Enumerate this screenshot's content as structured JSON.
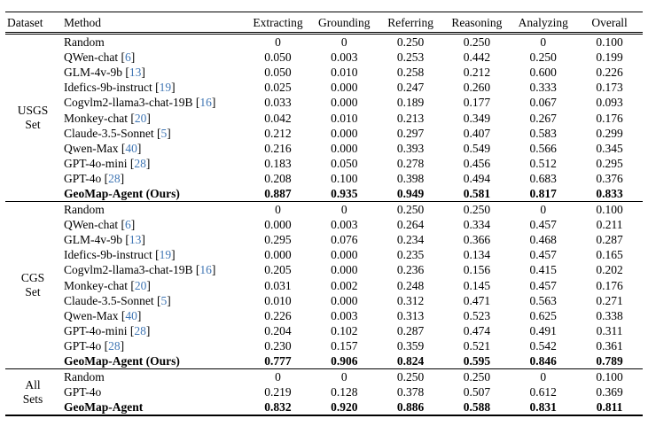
{
  "table": {
    "columns": [
      "Dataset",
      "Method",
      "Extracting",
      "Grounding",
      "Referring",
      "Reasoning",
      "Analyzing",
      "Overall"
    ],
    "cite_color": "#4076b4",
    "groups": [
      {
        "dataset_label_lines": [
          "USGS",
          "Set"
        ],
        "rows": [
          {
            "method": "Random",
            "cite": null,
            "bold": false,
            "values": [
              "0",
              "0",
              "0.250",
              "0.250",
              "0",
              "0.100"
            ]
          },
          {
            "method": "QWen-chat",
            "cite": "6",
            "bold": false,
            "values": [
              "0.050",
              "0.003",
              "0.253",
              "0.442",
              "0.250",
              "0.199"
            ]
          },
          {
            "method": "GLM-4v-9b",
            "cite": "13",
            "bold": false,
            "values": [
              "0.050",
              "0.010",
              "0.258",
              "0.212",
              "0.600",
              "0.226"
            ]
          },
          {
            "method": "Idefics-9b-instruct",
            "cite": "19",
            "bold": false,
            "values": [
              "0.025",
              "0.000",
              "0.247",
              "0.260",
              "0.333",
              "0.173"
            ]
          },
          {
            "method": "Cogvlm2-llama3-chat-19B",
            "cite": "16",
            "bold": false,
            "values": [
              "0.033",
              "0.000",
              "0.189",
              "0.177",
              "0.067",
              "0.093"
            ]
          },
          {
            "method": "Monkey-chat",
            "cite": "20",
            "bold": false,
            "values": [
              "0.042",
              "0.010",
              "0.213",
              "0.349",
              "0.267",
              "0.176"
            ]
          },
          {
            "method": "Claude-3.5-Sonnet",
            "cite": "5",
            "bold": false,
            "values": [
              "0.212",
              "0.000",
              "0.297",
              "0.407",
              "0.583",
              "0.299"
            ]
          },
          {
            "method": "Qwen-Max",
            "cite": "40",
            "bold": false,
            "values": [
              "0.216",
              "0.000",
              "0.393",
              "0.549",
              "0.566",
              "0.345"
            ]
          },
          {
            "method": "GPT-4o-mini",
            "cite": "28",
            "bold": false,
            "values": [
              "0.183",
              "0.050",
              "0.278",
              "0.456",
              "0.512",
              "0.295"
            ]
          },
          {
            "method": "GPT-4o",
            "cite": "28",
            "bold": false,
            "values": [
              "0.208",
              "0.100",
              "0.398",
              "0.494",
              "0.683",
              "0.376"
            ]
          },
          {
            "method": "GeoMap-Agent (Ours)",
            "cite": null,
            "bold": true,
            "values": [
              "0.887",
              "0.935",
              "0.949",
              "0.581",
              "0.817",
              "0.833"
            ]
          }
        ]
      },
      {
        "dataset_label_lines": [
          "CGS",
          "Set"
        ],
        "rows": [
          {
            "method": "Random",
            "cite": null,
            "bold": false,
            "values": [
              "0",
              "0",
              "0.250",
              "0.250",
              "0",
              "0.100"
            ]
          },
          {
            "method": "QWen-chat",
            "cite": "6",
            "bold": false,
            "values": [
              "0.000",
              "0.003",
              "0.264",
              "0.334",
              "0.457",
              "0.211"
            ]
          },
          {
            "method": "GLM-4v-9b",
            "cite": "13",
            "bold": false,
            "values": [
              "0.295",
              "0.076",
              "0.234",
              "0.366",
              "0.468",
              "0.287"
            ]
          },
          {
            "method": "Idefics-9b-instruct",
            "cite": "19",
            "bold": false,
            "values": [
              "0.000",
              "0.000",
              "0.235",
              "0.134",
              "0.457",
              "0.165"
            ]
          },
          {
            "method": "Cogvlm2-llama3-chat-19B",
            "cite": "16",
            "bold": false,
            "values": [
              "0.205",
              "0.000",
              "0.236",
              "0.156",
              "0.415",
              "0.202"
            ]
          },
          {
            "method": "Monkey-chat",
            "cite": "20",
            "bold": false,
            "values": [
              "0.031",
              "0.002",
              "0.248",
              "0.145",
              "0.457",
              "0.176"
            ]
          },
          {
            "method": "Claude-3.5-Sonnet",
            "cite": "5",
            "bold": false,
            "values": [
              "0.010",
              "0.000",
              "0.312",
              "0.471",
              "0.563",
              "0.271"
            ]
          },
          {
            "method": "Qwen-Max",
            "cite": "40",
            "bold": false,
            "values": [
              "0.226",
              "0.003",
              "0.313",
              "0.523",
              "0.625",
              "0.338"
            ]
          },
          {
            "method": "GPT-4o-mini",
            "cite": "28",
            "bold": false,
            "values": [
              "0.204",
              "0.102",
              "0.287",
              "0.474",
              "0.491",
              "0.311"
            ]
          },
          {
            "method": "GPT-4o",
            "cite": "28",
            "bold": false,
            "values": [
              "0.230",
              "0.157",
              "0.359",
              "0.521",
              "0.542",
              "0.361"
            ]
          },
          {
            "method": "GeoMap-Agent (Ours)",
            "cite": null,
            "bold": true,
            "values": [
              "0.777",
              "0.906",
              "0.824",
              "0.595",
              "0.846",
              "0.789"
            ]
          }
        ]
      },
      {
        "dataset_label_lines": [
          "All",
          "Sets"
        ],
        "rows": [
          {
            "method": "Random",
            "cite": null,
            "bold": false,
            "values": [
              "0",
              "0",
              "0.250",
              "0.250",
              "0",
              "0.100"
            ]
          },
          {
            "method": "GPT-4o",
            "cite": null,
            "bold": false,
            "values": [
              "0.219",
              "0.128",
              "0.378",
              "0.507",
              "0.612",
              "0.369"
            ]
          },
          {
            "method": "GeoMap-Agent",
            "cite": null,
            "bold": true,
            "values": [
              "0.832",
              "0.920",
              "0.886",
              "0.588",
              "0.831",
              "0.811"
            ]
          }
        ]
      }
    ]
  }
}
